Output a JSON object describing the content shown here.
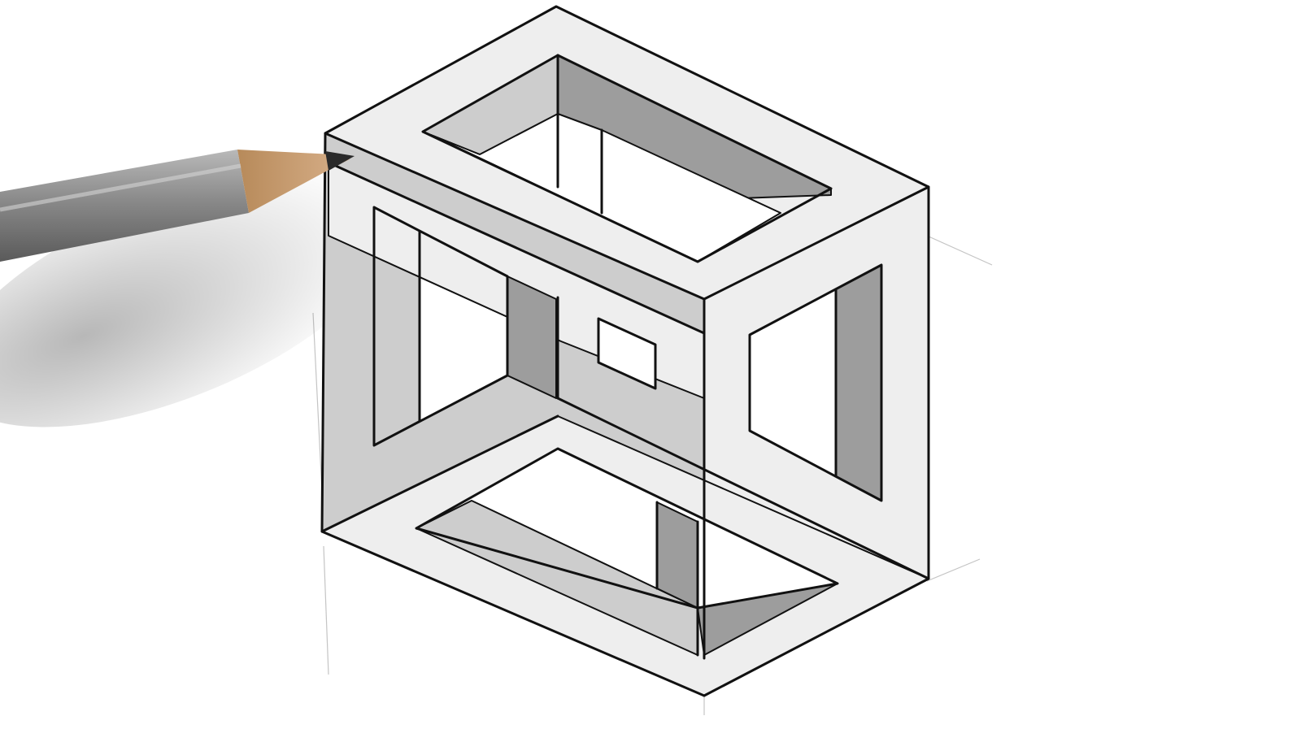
{
  "scene": {
    "subject": "impossible-cube-pencil-drawing",
    "paper_color": "#ffffff",
    "ink_color": "#111111",
    "face_light": "#eeeeee",
    "face_mid": "#cdcdcd",
    "face_dark": "#9d9d9d",
    "pencil_body_color": "#8f8f8f",
    "pencil_wood_color": "#c79a6a",
    "pencil_lead_color": "#2a2a2a"
  }
}
